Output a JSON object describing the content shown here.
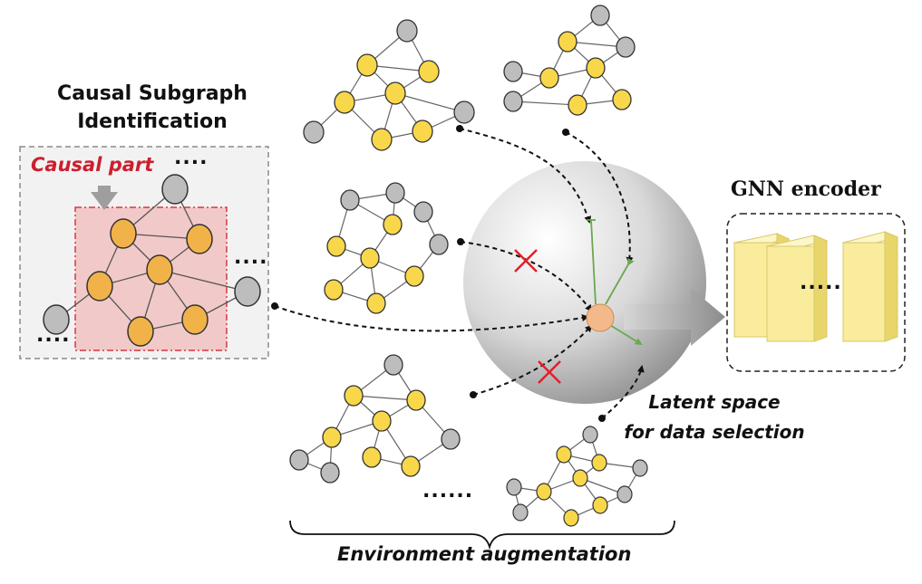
{
  "left_panel": {
    "title_line1": "Causal Subgraph",
    "title_line2": "Identification",
    "causal_part_label": "Causal part",
    "ellipsis": "...."
  },
  "encoder": {
    "title": "GNN encoder",
    "ellipsis": "....."
  },
  "latent": {
    "line1": "Latent space",
    "line2": "for data selection"
  },
  "augmentation": {
    "label": "Environment augmentation",
    "ellipsis": "......"
  },
  "colors": {
    "causal_node": "#f2b24a",
    "env_node": "#f8d74a",
    "gray_node": "#bdbdbd",
    "causal_box": "#f2c9c9",
    "cross": "#e0202a",
    "latent_anchor": "#f4b98a",
    "encoder_block": "#f9ec9c",
    "green_arrow": "#6aa84f"
  }
}
